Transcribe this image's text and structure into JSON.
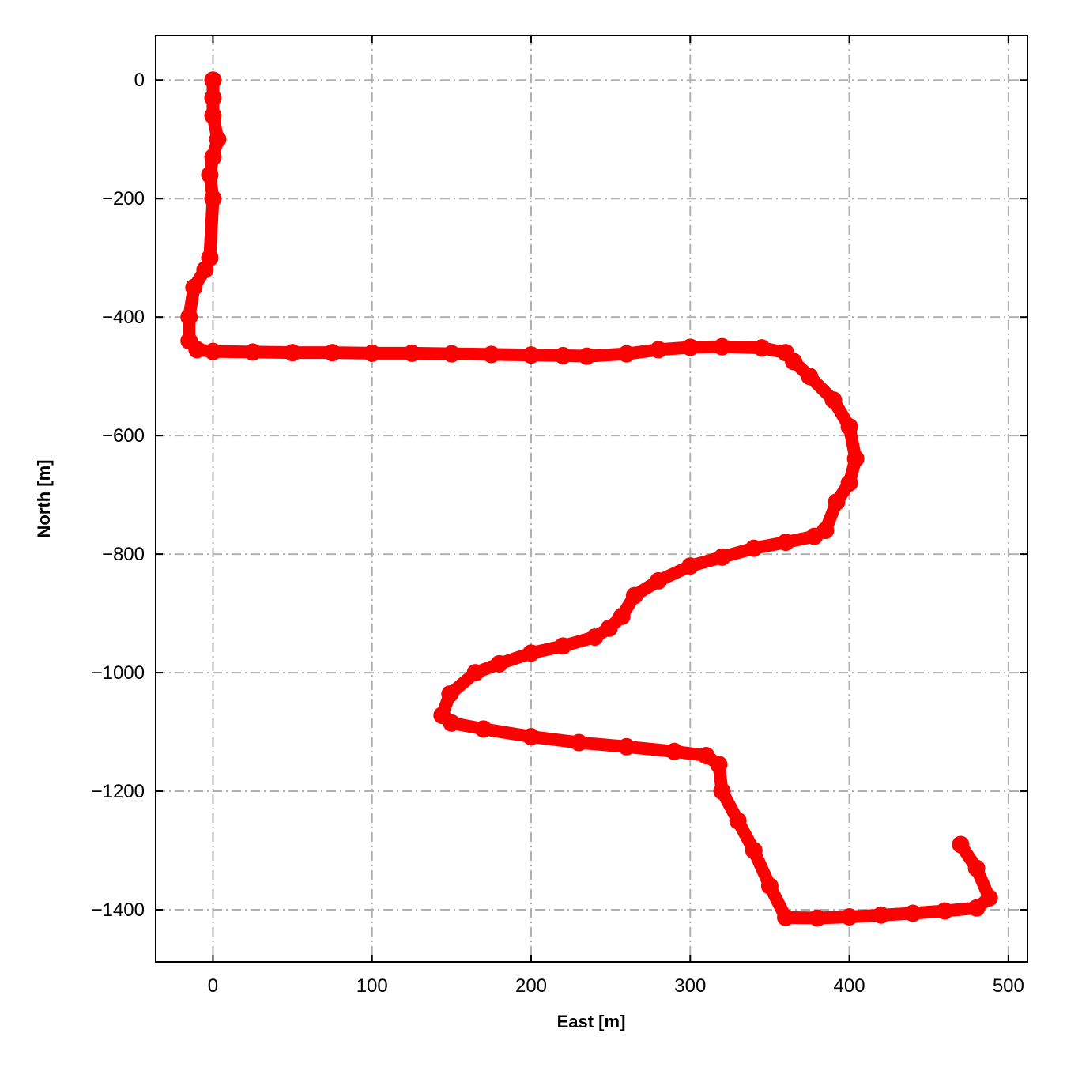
{
  "chart_data": {
    "type": "scatter",
    "title": "",
    "xlabel": "East [m]",
    "ylabel": "North [m]",
    "xlim": [
      -36,
      512
    ],
    "ylim": [
      -1488,
      75
    ],
    "xticks": [
      0,
      100,
      200,
      300,
      400,
      500
    ],
    "yticks": [
      0,
      -200,
      -400,
      -600,
      -800,
      -1000,
      -1200,
      -1400
    ],
    "ytick_labels": [
      "0",
      "−200",
      "−400",
      "−600",
      "−800",
      "−1000",
      "−1200",
      "−1400"
    ],
    "grid": true,
    "grid_style": "dash-dot",
    "marker": "circle",
    "color": "#ff0000",
    "grid_color": "#b0b0b0",
    "x": [
      0,
      0,
      0,
      3,
      0,
      -2,
      0,
      -2,
      -5,
      -12,
      -15,
      -15,
      -10,
      0,
      25,
      50,
      75,
      100,
      125,
      150,
      175,
      200,
      220,
      235,
      260,
      280,
      300,
      320,
      345,
      360,
      365,
      375,
      390,
      400,
      404,
      400,
      392,
      385,
      378,
      360,
      340,
      320,
      300,
      280,
      265,
      257,
      249,
      240,
      220,
      200,
      180,
      165,
      149,
      144,
      150,
      170,
      200,
      230,
      260,
      290,
      310,
      318,
      320,
      330,
      340,
      350,
      360,
      380,
      400,
      420,
      440,
      460,
      480,
      488,
      480,
      470
    ],
    "y": [
      0,
      -30,
      -60,
      -100,
      -130,
      -160,
      -200,
      -300,
      -320,
      -350,
      -400,
      -440,
      -455,
      -458,
      -459,
      -460,
      -460,
      -461,
      -461,
      -462,
      -463,
      -464,
      -465,
      -466,
      -462,
      -455,
      -451,
      -450,
      -452,
      -460,
      -475,
      -500,
      -540,
      -585,
      -639,
      -680,
      -712,
      -760,
      -770,
      -780,
      -790,
      -805,
      -820,
      -845,
      -870,
      -905,
      -925,
      -940,
      -955,
      -967,
      -985,
      -1000,
      -1036,
      -1072,
      -1085,
      -1095,
      -1108,
      -1118,
      -1125,
      -1133,
      -1140,
      -1155,
      -1200,
      -1250,
      -1300,
      -1360,
      -1413,
      -1414,
      -1412,
      -1409,
      -1406,
      -1402,
      -1397,
      -1380,
      -1330,
      -1290
    ]
  }
}
